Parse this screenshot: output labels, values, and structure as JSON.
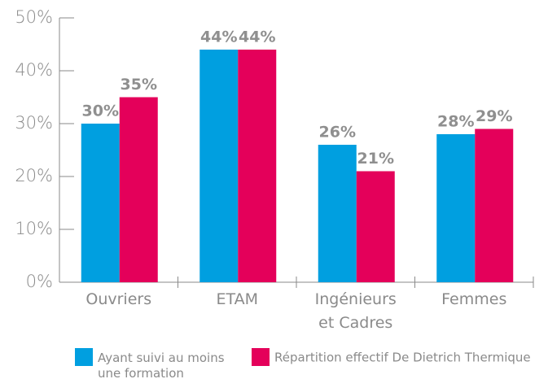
{
  "chart_data": {
    "type": "bar",
    "categories": [
      "Ouvriers",
      "ETAM",
      "Ingénieurs\net Cadres",
      "Femmes"
    ],
    "series": [
      {
        "name": "Ayant suivi au moins une formation",
        "color": "#009fe0",
        "values": [
          30,
          44,
          26,
          28
        ],
        "value_labels": [
          "30%",
          "44%",
          "26%",
          "28%"
        ]
      },
      {
        "name": "Répartition effectif De Dietrich Thermique",
        "color": "#e4005a",
        "values": [
          35,
          44,
          21,
          29
        ],
        "value_labels": [
          "35%",
          "44%",
          "21%",
          "29%"
        ]
      }
    ],
    "ylim": [
      0,
      50
    ],
    "yticks": [
      {
        "value": 0,
        "label": "0%"
      },
      {
        "value": 10,
        "label": "10%"
      },
      {
        "value": 20,
        "label": "20%"
      },
      {
        "value": 30,
        "label": "30%"
      },
      {
        "value": 40,
        "label": "40%"
      },
      {
        "value": 50,
        "label": "50%"
      }
    ],
    "legend": "bottom"
  }
}
